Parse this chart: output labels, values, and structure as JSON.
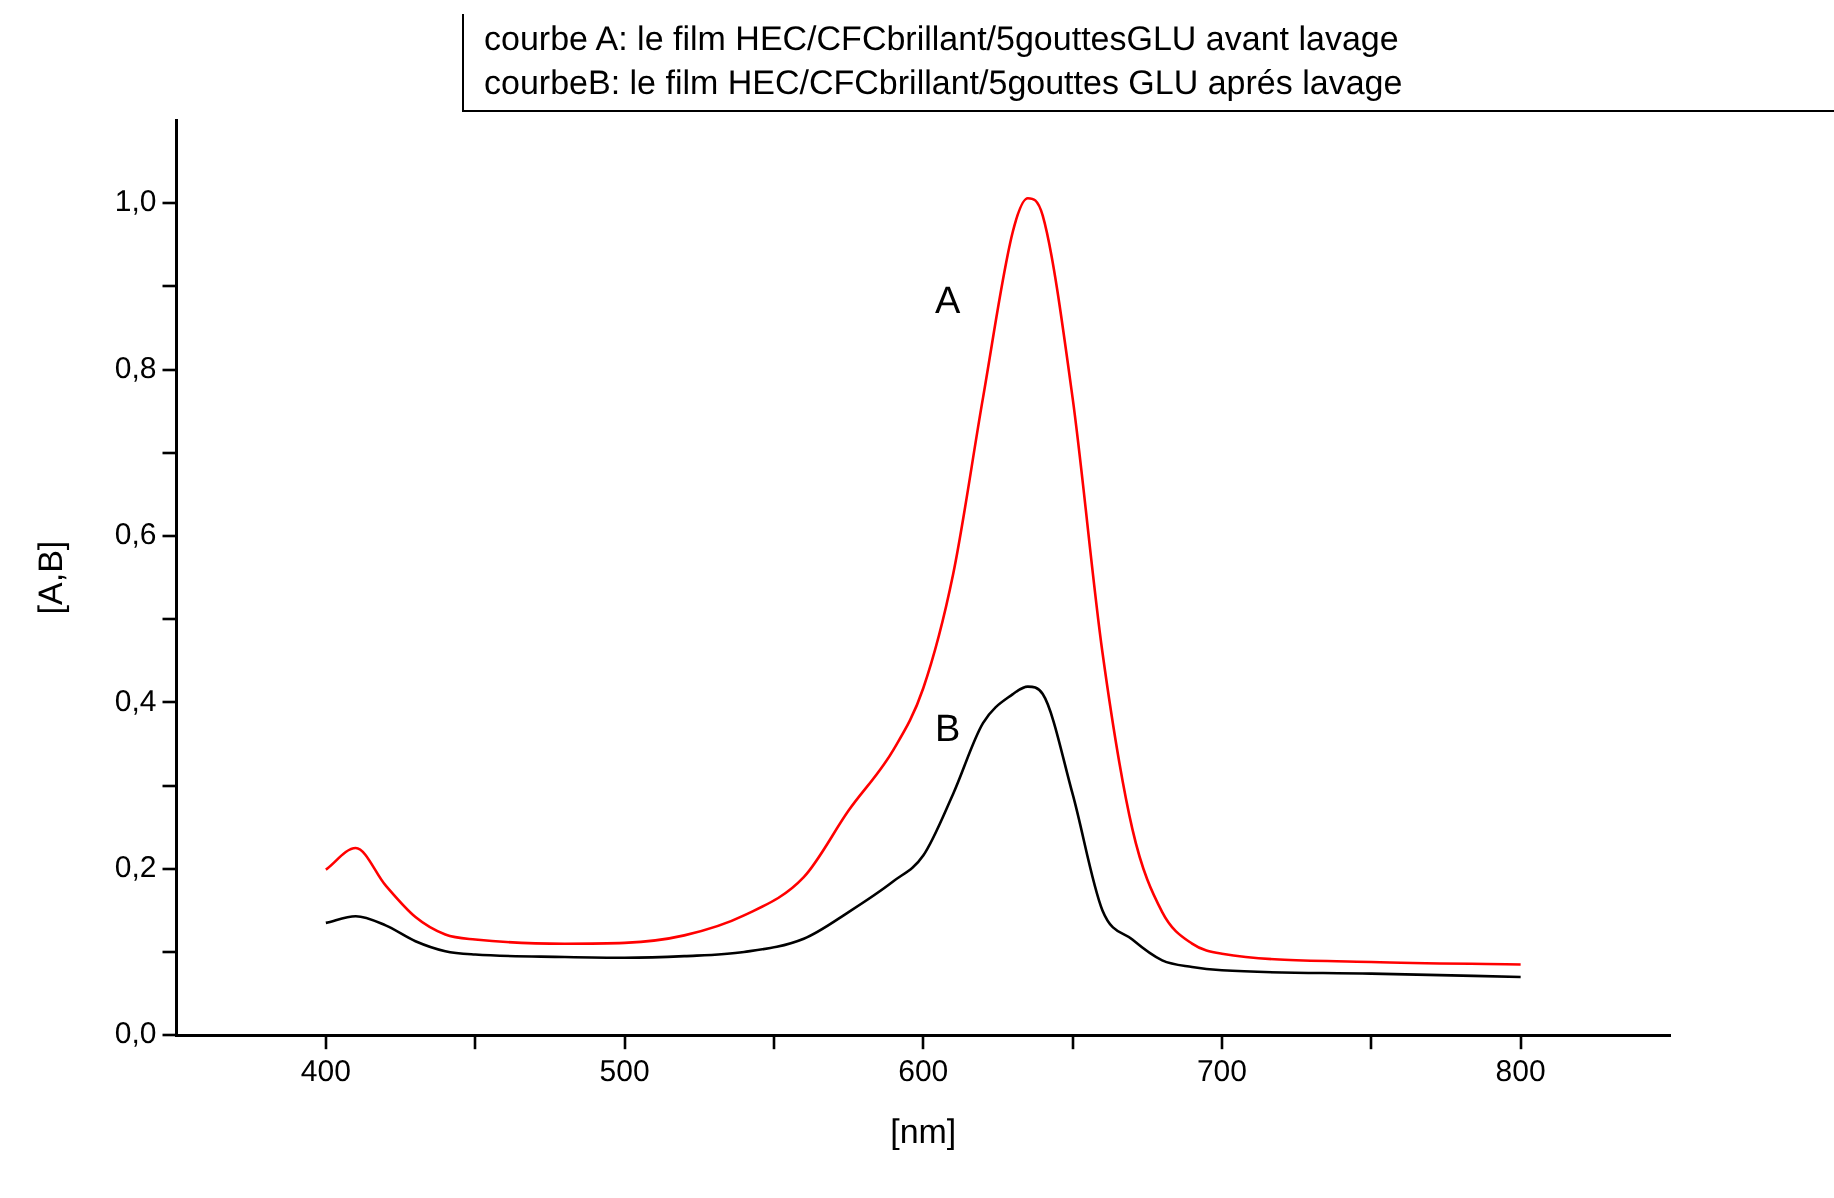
{
  "chart_data": {
    "type": "line",
    "xlabel": "[nm]",
    "ylabel": "[A,B]",
    "marker": "none",
    "line_style": "solid",
    "grid": false,
    "legend": false,
    "xlim": [
      350,
      850
    ],
    "ylim": [
      0,
      1.1
    ],
    "xticks": [
      400,
      {
        "value": 450,
        "label": null
      },
      500,
      {
        "value": 550,
        "label": null
      },
      600,
      {
        "value": 650,
        "label": null
      },
      700,
      {
        "value": 750,
        "label": null
      },
      800
    ],
    "yticks": [
      {
        "value": 0,
        "label": "0,0"
      },
      {
        "value": 0.1,
        "label": null
      },
      {
        "value": 0.2,
        "label": "0,2"
      },
      {
        "value": 0.3,
        "label": null
      },
      {
        "value": 0.4,
        "label": "0,4"
      },
      {
        "value": 0.5,
        "label": null
      },
      {
        "value": 0.6,
        "label": "0,6"
      },
      {
        "value": 0.7,
        "label": null
      },
      {
        "value": 0.8,
        "label": "0,8"
      },
      {
        "value": 0.9,
        "label": null
      },
      {
        "value": 1.0,
        "label": "1,0"
      }
    ],
    "x": [
      400,
      410,
      420,
      430,
      440,
      450,
      480,
      500,
      520,
      540,
      560,
      575,
      590,
      600,
      610,
      620,
      630,
      635,
      640,
      650,
      660,
      670,
      680,
      690,
      700,
      750,
      800
    ],
    "series": [
      {
        "name": "A",
        "color": "#ff0000",
        "values": [
          0.199,
          0.225,
          0.18,
          0.142,
          0.121,
          0.115,
          0.11,
          0.111,
          0.12,
          0.144,
          0.19,
          0.27,
          0.343,
          0.417,
          0.554,
          0.766,
          0.966,
          1.006,
          0.985,
          0.766,
          0.46,
          0.248,
          0.148,
          0.11,
          0.098,
          0.088,
          0.085
        ]
      },
      {
        "name": "B",
        "color": "#000000",
        "values": [
          0.135,
          0.143,
          0.132,
          0.113,
          0.101,
          0.097,
          0.094,
          0.093,
          0.095,
          0.1,
          0.116,
          0.148,
          0.185,
          0.216,
          0.29,
          0.375,
          0.41,
          0.419,
          0.41,
          0.29,
          0.15,
          0.115,
          0.09,
          0.082,
          0.078,
          0.074,
          0.07
        ]
      }
    ],
    "annotations": [
      "courbe A: le film HEC/CFCbrillant/5gouttesGLU avant lavage",
      "courbeB: le film HEC/CFCbrillant/5gouttes GLU aprés lavage"
    ]
  }
}
